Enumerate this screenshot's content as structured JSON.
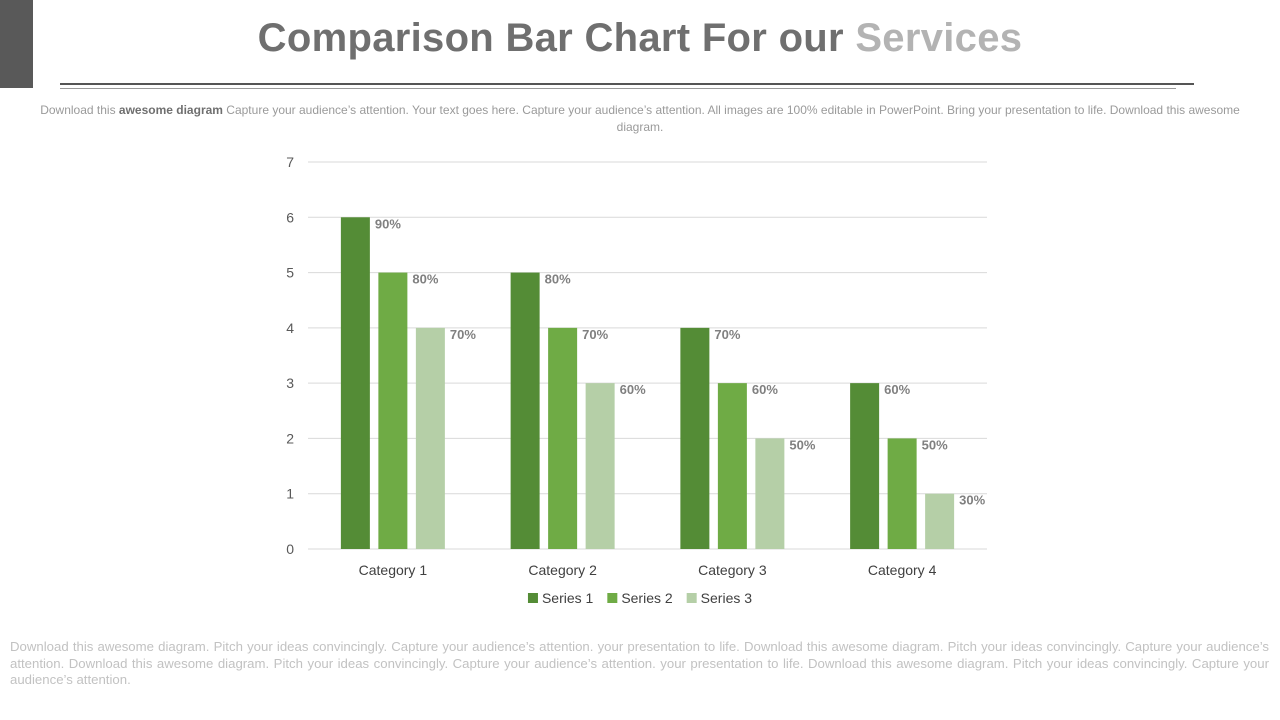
{
  "header": {
    "title_main": "Comparison Bar Chart For our",
    "title_accent": "Services"
  },
  "intro": {
    "lead": "Download this",
    "bold": "awesome diagram",
    "rest": "Capture your audience’s attention. Your text goes here. Capture your audience’s attention. All images are 100% editable in PowerPoint. Bring your presentation to life. Download this awesome diagram."
  },
  "footer": {
    "text": "Download this awesome diagram. Pitch your ideas convincingly. Capture your audience’s attention. your presentation to life. Download this awesome diagram. Pitch your ideas convincingly. Capture your audience’s attention. Download this awesome diagram. Pitch your ideas convincingly. Capture your audience’s attention. your presentation to life. Download this awesome diagram. Pitch your ideas convincingly. Capture your audience’s attention."
  },
  "chart_data": {
    "type": "bar",
    "title": "",
    "xlabel": "",
    "ylabel": "",
    "categories": [
      "Category 1",
      "Category 2",
      "Category 3",
      "Category 4"
    ],
    "ylim": [
      0,
      7
    ],
    "yticks": [
      0,
      1,
      2,
      3,
      4,
      5,
      6,
      7
    ],
    "grid": true,
    "legend": "bottom",
    "series": [
      {
        "name": "Series 1",
        "values": [
          6,
          5,
          4,
          3
        ],
        "labels": [
          "90%",
          "80%",
          "70%",
          "60%"
        ],
        "color": "#548c36"
      },
      {
        "name": "Series 2",
        "values": [
          5,
          4,
          3,
          2
        ],
        "labels": [
          "80%",
          "70%",
          "60%",
          "50%"
        ],
        "color": "#6fab45"
      },
      {
        "name": "Series 3",
        "values": [
          4,
          3,
          2,
          1
        ],
        "labels": [
          "70%",
          "60%",
          "50%",
          "30%"
        ],
        "color": "#b5cfa7"
      }
    ],
    "label_color": "#808080",
    "gridline_color": "#d9d9d9"
  }
}
